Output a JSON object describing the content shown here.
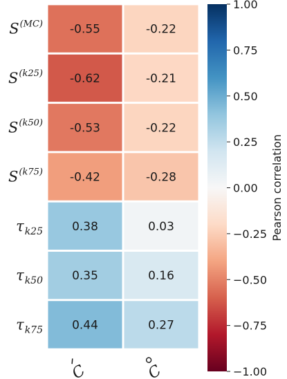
{
  "chart_data": {
    "type": "heatmap",
    "rows": [
      {
        "base": "S",
        "sup": "(MC)",
        "sub": ""
      },
      {
        "base": "S",
        "sup": "(k25)",
        "sub": ""
      },
      {
        "base": "S",
        "sup": "(k50)",
        "sub": ""
      },
      {
        "base": "S",
        "sup": "(k75)",
        "sub": ""
      },
      {
        "base": "τ",
        "sup": "",
        "sub": "k25"
      },
      {
        "base": "τ",
        "sup": "",
        "sub": "k50"
      },
      {
        "base": "τ",
        "sup": "",
        "sub": "k75"
      }
    ],
    "columns": [
      "C",
      "C"
    ],
    "values": [
      [
        -0.55,
        -0.22
      ],
      [
        -0.62,
        -0.21
      ],
      [
        -0.53,
        -0.22
      ],
      [
        -0.42,
        -0.28
      ],
      [
        0.38,
        0.03
      ],
      [
        0.35,
        0.16
      ],
      [
        0.44,
        0.27
      ]
    ],
    "value_labels": [
      [
        "-0.55",
        "-0.22"
      ],
      [
        "-0.62",
        "-0.21"
      ],
      [
        "-0.53",
        "-0.22"
      ],
      [
        "-0.42",
        "-0.28"
      ],
      [
        "0.38",
        "0.03"
      ],
      [
        "0.35",
        "0.16"
      ],
      [
        "0.44",
        "0.27"
      ]
    ],
    "colorbar": {
      "label": "Pearson correlation",
      "vmin": -1.0,
      "vmax": 1.0,
      "ticks": [
        "1.00",
        "0.75",
        "0.50",
        "0.25",
        "0.00",
        "−0.25",
        "−0.50",
        "−0.75",
        "−1.00"
      ],
      "tick_values": [
        1.0,
        0.75,
        0.5,
        0.25,
        0.0,
        -0.25,
        -0.5,
        -0.75,
        -1.0
      ],
      "colormap": "RdBu",
      "colors": {
        "low": "#67001f",
        "mid": "#f7f7f7",
        "high": "#053061"
      }
    }
  }
}
